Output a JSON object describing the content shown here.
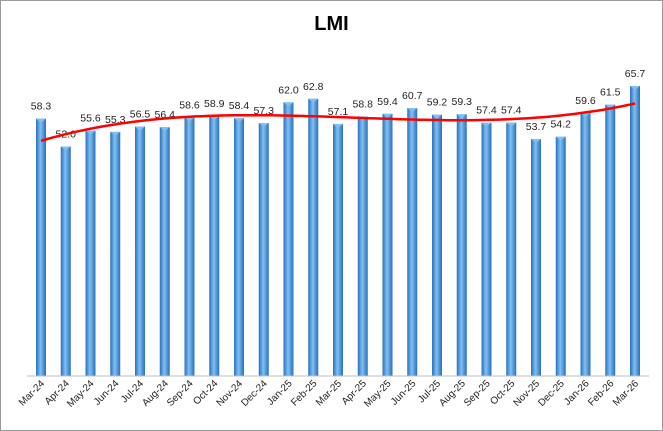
{
  "chart_data": {
    "type": "bar",
    "title": "LMI",
    "xlabel": "",
    "ylabel": "",
    "ylim": [
      0,
      70
    ],
    "grid": false,
    "legend": "none",
    "categories": [
      "Mar-24",
      "Apr-24",
      "May-24",
      "Jun-24",
      "Jul-24",
      "Aug-24",
      "Sep-24",
      "Oct-24",
      "Nov-24",
      "Dec-24",
      "Jan-25",
      "Feb-25",
      "Mar-25",
      "Apr-25",
      "May-25",
      "Jun-25",
      "Jul-25",
      "Aug-25",
      "Sep-25",
      "Oct-25",
      "Nov-25",
      "Dec-25",
      "Jan-26",
      "Feb-26",
      "Mar-26"
    ],
    "values": [
      58.3,
      52.0,
      55.6,
      55.3,
      56.5,
      56.4,
      58.6,
      58.9,
      58.4,
      57.3,
      62.0,
      62.8,
      57.1,
      58.8,
      59.4,
      60.7,
      59.2,
      59.3,
      57.4,
      57.4,
      53.7,
      54.2,
      59.6,
      61.5,
      65.7
    ],
    "data_labels": [
      "58.3",
      "52.0",
      "55.6",
      "55.3",
      "56.5",
      "56.4",
      "58.6",
      "58.9",
      "58.4",
      "57.3",
      "62.0",
      "62.8",
      "57.1",
      "58.8",
      "59.4",
      "60.7",
      "59.2",
      "59.3",
      "57.4",
      "57.4",
      "53.7",
      "54.2",
      "59.6",
      "61.5",
      "65.7"
    ],
    "trendline": {
      "type": "polynomial",
      "color": "#ff0000"
    },
    "colors": {
      "bar": "#3f8fdc",
      "bar_dark": "#2a6fb8",
      "bar_light": "#7fc0f5",
      "trendline": "#ff0000"
    }
  }
}
